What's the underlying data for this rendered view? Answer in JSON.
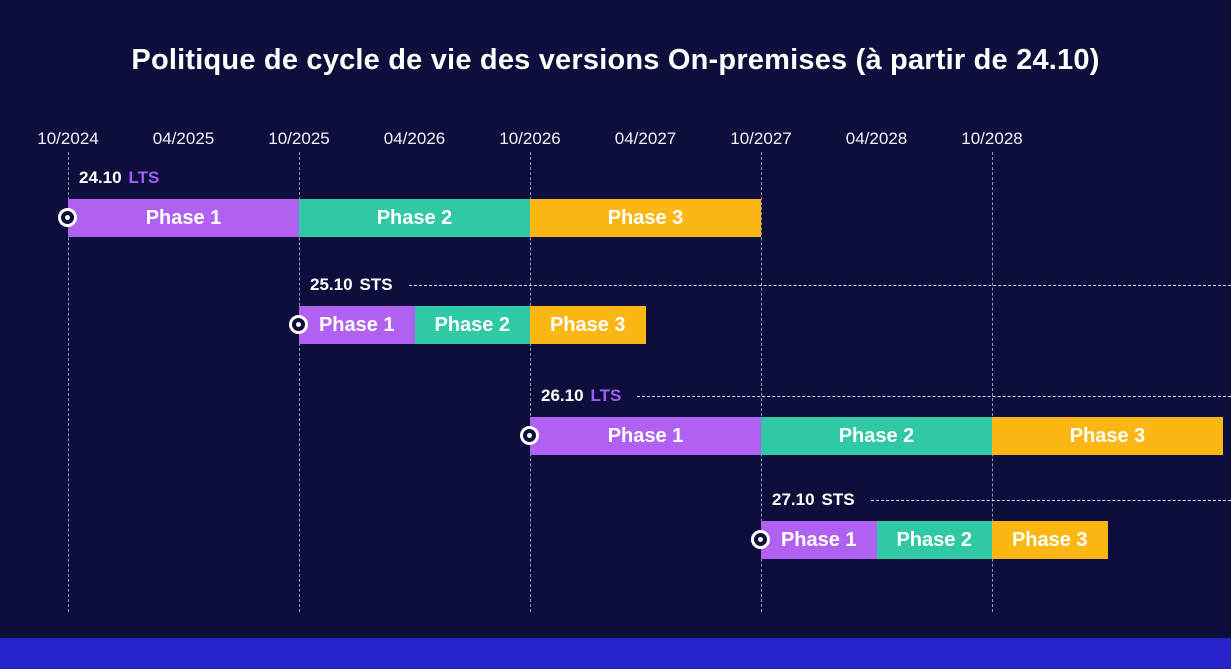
{
  "chart_data": {
    "type": "gantt",
    "title": "Politique de cycle de vie des versions On-premises (à partir de 24.10)",
    "x_ticks": [
      "10/2024",
      "04/2025",
      "10/2025",
      "04/2026",
      "10/2026",
      "04/2027",
      "10/2027",
      "04/2028",
      "10/2028"
    ],
    "tick_interval_months": 6,
    "gridline_tick_indexes": [
      0,
      2,
      4,
      6,
      8
    ],
    "legend_position": "none",
    "phase_colors": {
      "Phase 1": "#b161f1",
      "Phase 2": "#2fc9a5",
      "Phase 3": "#fdb714"
    },
    "channel_colors": {
      "LTS": "#a25cf5",
      "STS": "#ffffff"
    },
    "rows": [
      {
        "version": "24.10",
        "channel": "LTS",
        "start_month": 0,
        "phases": [
          {
            "label": "Phase 1",
            "duration_months": 12
          },
          {
            "label": "Phase 2",
            "duration_months": 12
          },
          {
            "label": "Phase 3",
            "duration_months": 12
          }
        ],
        "dashed_extension": false
      },
      {
        "version": "25.10",
        "channel": "STS",
        "start_month": 12,
        "phases": [
          {
            "label": "Phase 1",
            "duration_months": 6
          },
          {
            "label": "Phase 2",
            "duration_months": 6
          },
          {
            "label": "Phase 3",
            "duration_months": 6
          }
        ],
        "dashed_extension": true
      },
      {
        "version": "26.10",
        "channel": "LTS",
        "start_month": 24,
        "phases": [
          {
            "label": "Phase 1",
            "duration_months": 12
          },
          {
            "label": "Phase 2",
            "duration_months": 12
          },
          {
            "label": "Phase 3",
            "duration_months": 12
          }
        ],
        "dashed_extension": true
      },
      {
        "version": "27.10",
        "channel": "STS",
        "start_month": 36,
        "phases": [
          {
            "label": "Phase 1",
            "duration_months": 6
          },
          {
            "label": "Phase 2",
            "duration_months": 6
          },
          {
            "label": "Phase 3",
            "duration_months": 6
          }
        ],
        "dashed_extension": true
      }
    ],
    "colors": {
      "background": "#0e0e3c",
      "footer_bar": "#2424c8",
      "grid": "rgba(255,255,255,0.55)",
      "text": "#ffffff"
    }
  }
}
